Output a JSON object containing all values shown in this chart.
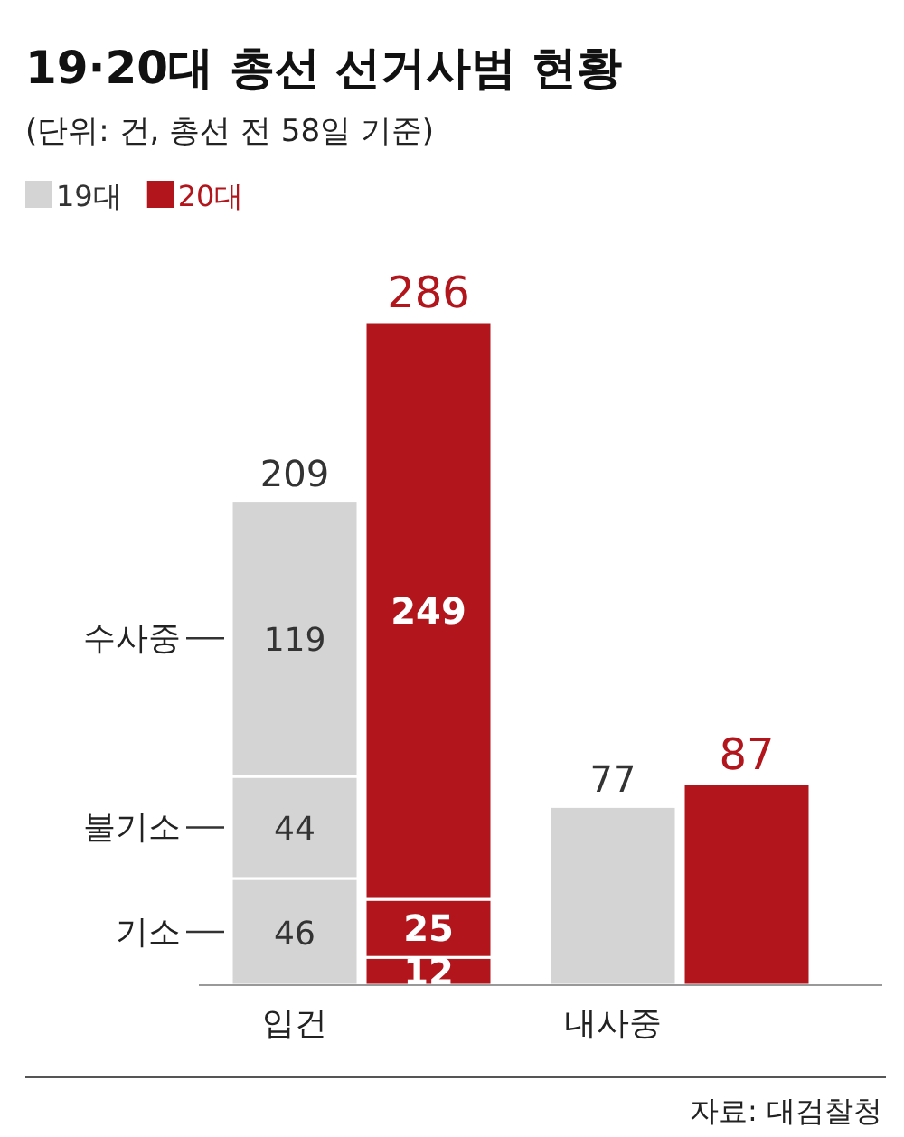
{
  "chart_data": {
    "type": "bar",
    "title": "19·20대 총선 선거사범 현황",
    "subtitle": "(단위: 건, 총선 전 58일 기준)",
    "stacked": true,
    "data_labels": true,
    "legend": "top left",
    "categories": [
      "입건",
      null,
      "내사중",
      null
    ],
    "series": [
      {
        "name": "19대",
        "color": "#d4d4d4",
        "values": [
          46,
          null,
          77,
          null
        ]
      },
      {
        "name": "20대",
        "color": "#b2161c",
        "values": [
          null,
          12,
          null,
          87
        ]
      },
      {
        "color": "#d4d4d4",
        "values": [
          44,
          null,
          null,
          null
        ]
      },
      {
        "color": "#b2161c",
        "values": [
          null,
          25,
          null,
          null
        ]
      },
      {
        "color": "#d4d4d4",
        "values": [
          119,
          null,
          null,
          null
        ]
      },
      {
        "color": "#b2161c",
        "values": [
          null,
          249,
          null,
          null
        ]
      }
    ],
    "totals": [
      "209",
      "286",
      null,
      null
    ],
    "annotations": [
      "수사중",
      "불기소",
      "기소",
      "자료: 대검찰청"
    ]
  }
}
